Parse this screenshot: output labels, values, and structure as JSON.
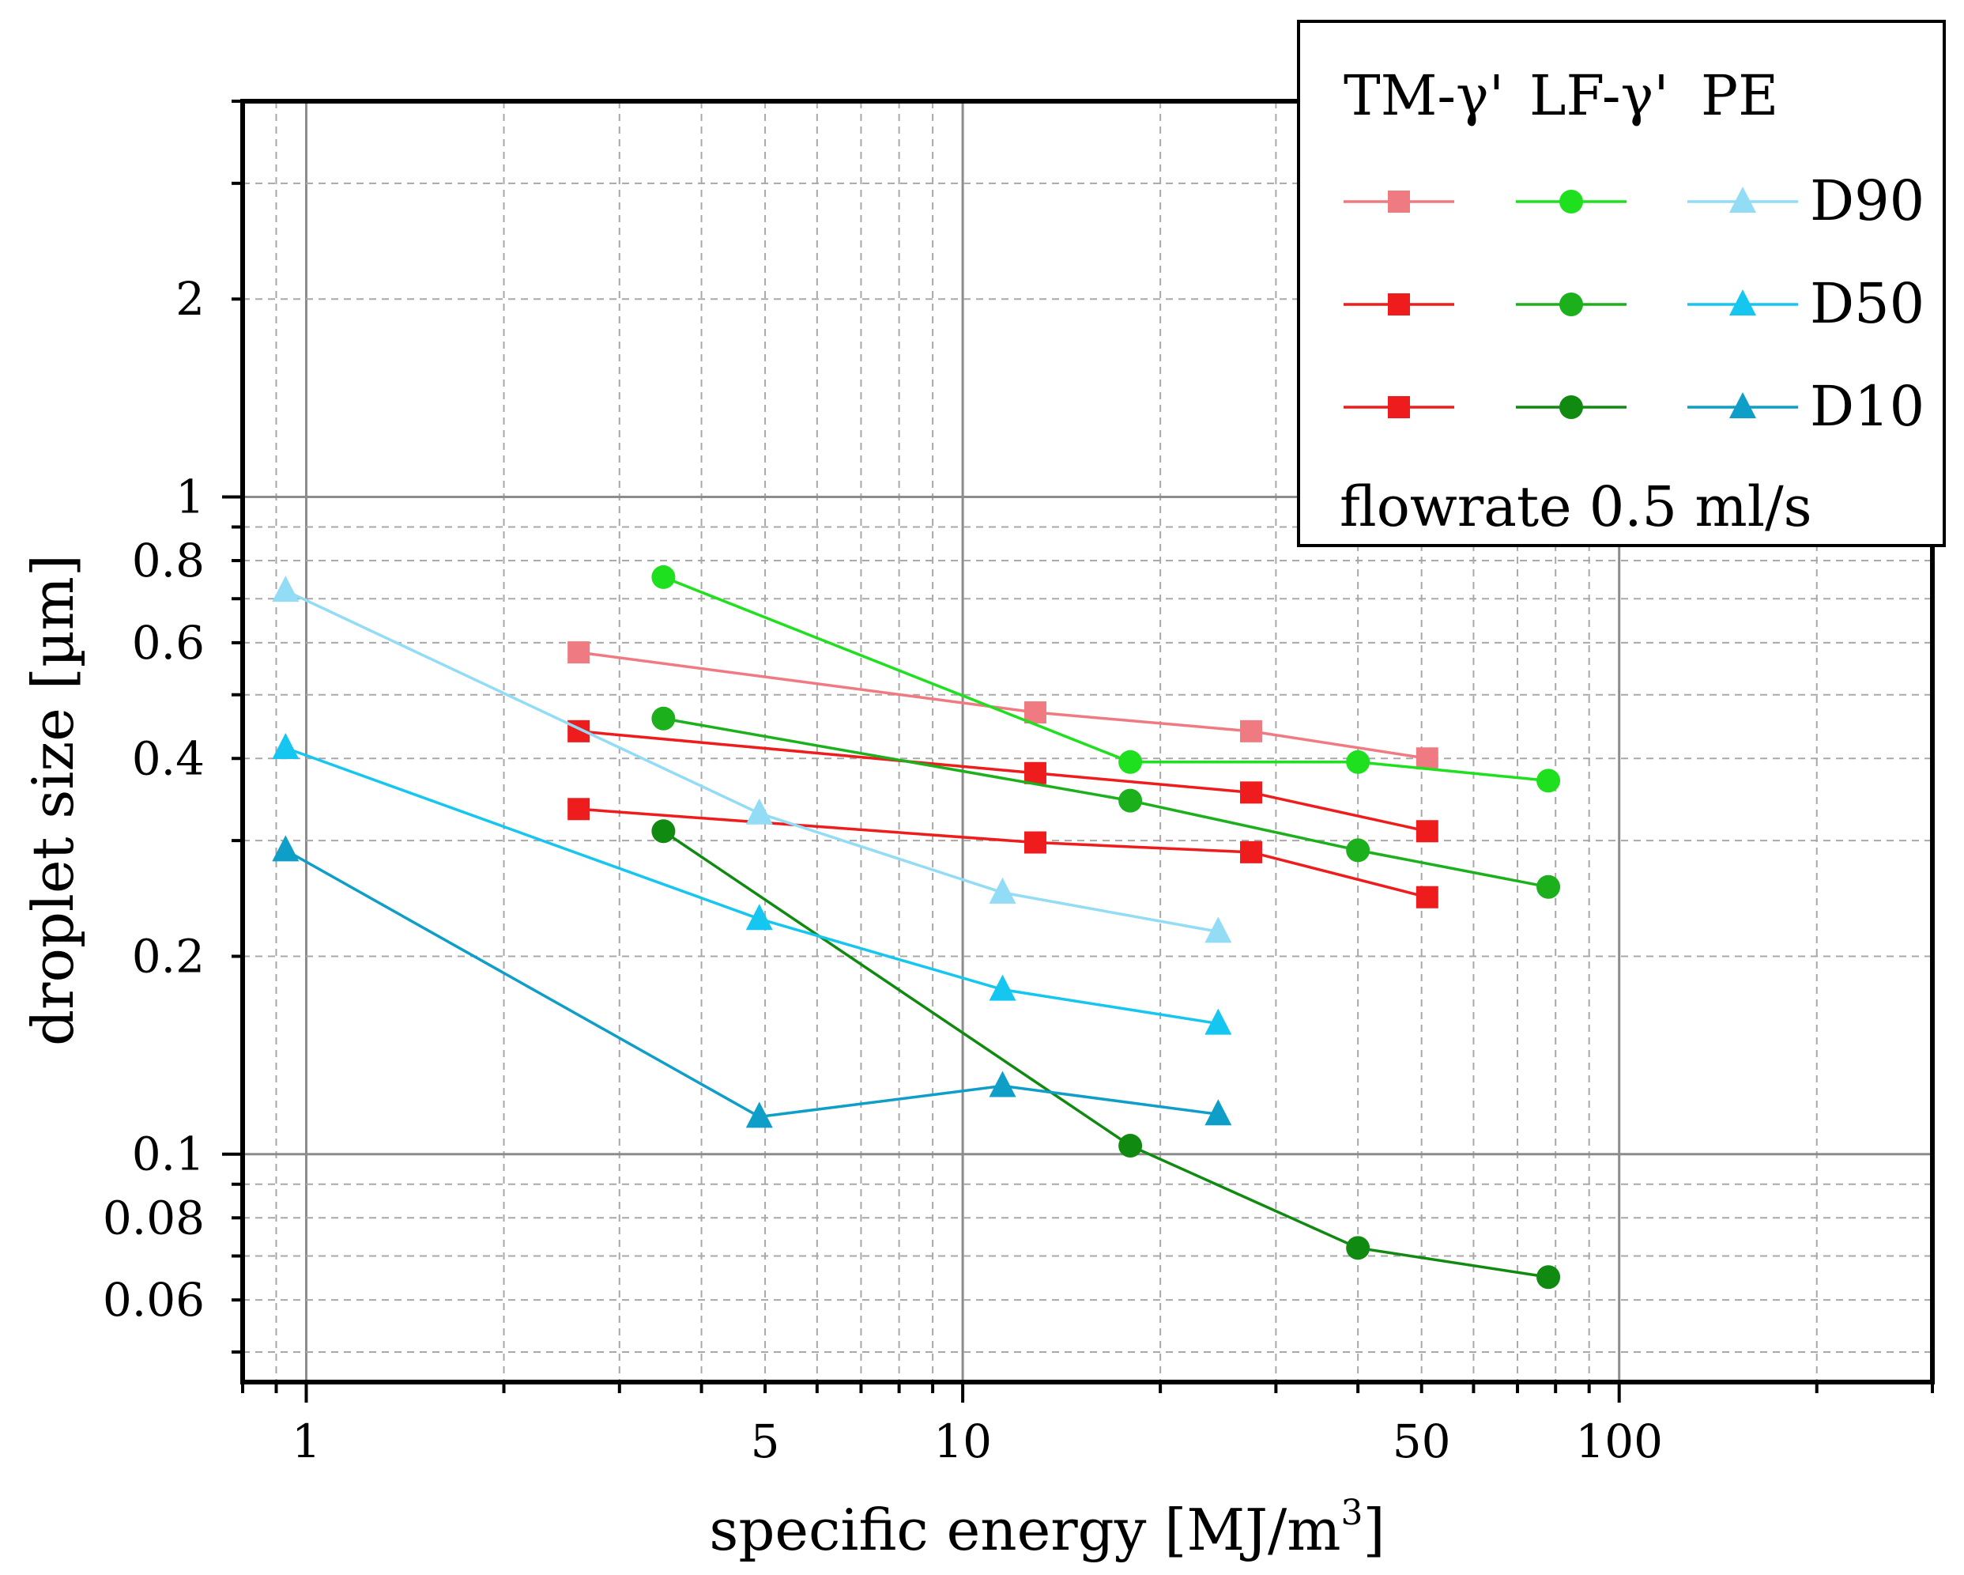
{
  "chart_data": {
    "type": "line",
    "xscale": "log",
    "yscale": "log",
    "xlabel": "specific energy [MJ/m",
    "xlabel_sup": "3",
    "xlabel_end": "]",
    "ylabel": "droplet size [µm]",
    "xlim": [
      0.8,
      300
    ],
    "ylim": [
      0.045,
      4
    ],
    "x_ticks": [
      {
        "value": 1,
        "label": "1"
      },
      {
        "value": 5,
        "label": "5"
      },
      {
        "value": 10,
        "label": "10"
      },
      {
        "value": 50,
        "label": "50"
      },
      {
        "value": 100,
        "label": "100"
      }
    ],
    "y_ticks": [
      {
        "value": 0.06,
        "label": "0.06"
      },
      {
        "value": 0.08,
        "label": "0.08"
      },
      {
        "value": 0.1,
        "label": "0.1"
      },
      {
        "value": 0.2,
        "label": "0.2"
      },
      {
        "value": 0.4,
        "label": "0.4"
      },
      {
        "value": 0.6,
        "label": "0.6"
      },
      {
        "value": 0.8,
        "label": "0.8"
      },
      {
        "value": 1,
        "label": "1"
      },
      {
        "value": 2,
        "label": "2"
      }
    ],
    "grid": true,
    "series": [
      {
        "name": "TM-γ' D90",
        "color": "#f07a82",
        "marker": "square",
        "x": [
          2.6,
          12.9,
          27.5,
          51
        ],
        "y": [
          0.58,
          0.47,
          0.44,
          0.4
        ]
      },
      {
        "name": "TM-γ' D50",
        "color": "#ee1c1c",
        "marker": "square",
        "x": [
          2.6,
          12.9,
          27.5,
          51
        ],
        "y": [
          0.44,
          0.38,
          0.355,
          0.31
        ]
      },
      {
        "name": "TM-γ' D10",
        "color": "#ee1c1c",
        "marker": "square",
        "x": [
          2.6,
          12.9,
          27.5,
          51
        ],
        "y": [
          0.335,
          0.298,
          0.288,
          0.246
        ]
      },
      {
        "name": "LF-γ' D90",
        "color": "#1ee01e",
        "marker": "circle",
        "x": [
          3.5,
          18,
          40,
          78
        ],
        "y": [
          0.755,
          0.395,
          0.395,
          0.37
        ]
      },
      {
        "name": "LF-γ' D50",
        "color": "#1cb01c",
        "marker": "circle",
        "x": [
          3.5,
          18,
          40,
          78
        ],
        "y": [
          0.46,
          0.345,
          0.29,
          0.255
        ]
      },
      {
        "name": "LF-γ' D10",
        "color": "#108a10",
        "marker": "circle",
        "x": [
          3.5,
          18,
          40,
          78
        ],
        "y": [
          0.31,
          0.103,
          0.072,
          0.065
        ]
      },
      {
        "name": "PE D90",
        "color": "#92dcf5",
        "marker": "triangle",
        "x": [
          0.93,
          4.9,
          11.5,
          24.5
        ],
        "y": [
          0.72,
          0.33,
          0.25,
          0.218
        ]
      },
      {
        "name": "PE D50",
        "color": "#14c6f0",
        "marker": "triangle",
        "x": [
          0.93,
          4.9,
          11.5,
          24.5
        ],
        "y": [
          0.415,
          0.228,
          0.178,
          0.158
        ]
      },
      {
        "name": "PE D10",
        "color": "#0f9ec8",
        "marker": "triangle",
        "x": [
          0.93,
          4.9,
          11.5,
          24.5
        ],
        "y": [
          0.29,
          0.114,
          0.127,
          0.115
        ]
      }
    ],
    "legend": {
      "position": "top-right",
      "headers": [
        "TM-γ'",
        "LF-γ'",
        "PE"
      ],
      "row_labels": [
        "D90",
        "D50",
        "D10"
      ],
      "note": "flowrate 0.5 ml/s"
    }
  }
}
